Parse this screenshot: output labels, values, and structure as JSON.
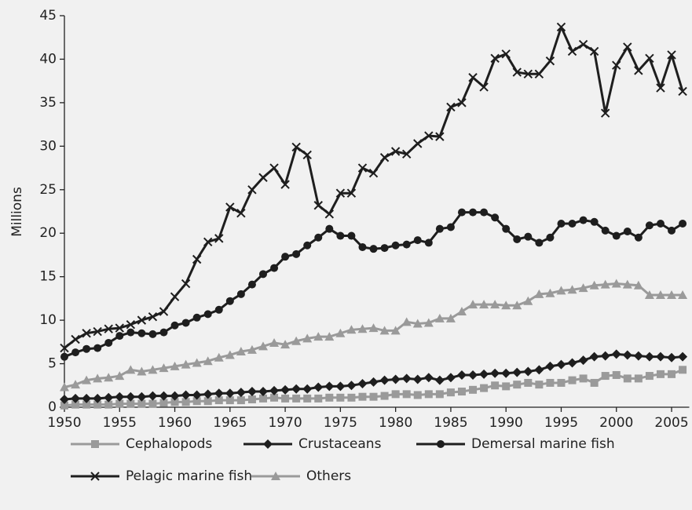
{
  "chart_data": {
    "type": "line",
    "y_label": "Millions",
    "x": [
      1950,
      1951,
      1952,
      1953,
      1954,
      1955,
      1956,
      1957,
      1958,
      1959,
      1960,
      1961,
      1962,
      1963,
      1964,
      1965,
      1966,
      1967,
      1968,
      1969,
      1970,
      1971,
      1972,
      1973,
      1974,
      1975,
      1976,
      1977,
      1978,
      1979,
      1980,
      1981,
      1982,
      1983,
      1984,
      1985,
      1986,
      1987,
      1988,
      1989,
      1990,
      1991,
      1992,
      1993,
      1994,
      1995,
      1996,
      1997,
      1998,
      1999,
      2000,
      2001,
      2002,
      2003,
      2004,
      2005,
      2006
    ],
    "xlim": [
      1950,
      2006.6
    ],
    "xticks": [
      1950,
      1955,
      1960,
      1965,
      1970,
      1975,
      1980,
      1985,
      1990,
      1995,
      2000,
      2005
    ],
    "ylim": [
      0,
      45
    ],
    "yticks": [
      0,
      5,
      10,
      15,
      20,
      25,
      30,
      35,
      40,
      45
    ],
    "series": [
      {
        "name": "Cephalopods",
        "color": "#9a9a9a",
        "marker": "square",
        "values": [
          0.2,
          0.3,
          0.3,
          0.3,
          0.3,
          0.4,
          0.4,
          0.4,
          0.4,
          0.5,
          0.6,
          0.6,
          0.7,
          0.7,
          0.8,
          0.8,
          0.8,
          0.9,
          1.0,
          1.1,
          1.0,
          1.0,
          1.0,
          1.0,
          1.1,
          1.1,
          1.1,
          1.2,
          1.2,
          1.3,
          1.5,
          1.5,
          1.4,
          1.5,
          1.5,
          1.7,
          1.8,
          2.0,
          2.2,
          2.5,
          2.4,
          2.6,
          2.8,
          2.6,
          2.8,
          2.8,
          3.1,
          3.3,
          2.8,
          3.6,
          3.7,
          3.3,
          3.3,
          3.6,
          3.8,
          3.8,
          4.3
        ]
      },
      {
        "name": "Crustaceans",
        "color": "#1e1e1e",
        "marker": "diamond",
        "values": [
          0.9,
          1.0,
          1.0,
          1.0,
          1.1,
          1.2,
          1.2,
          1.2,
          1.3,
          1.3,
          1.3,
          1.4,
          1.4,
          1.5,
          1.6,
          1.6,
          1.7,
          1.8,
          1.8,
          1.9,
          2.0,
          2.1,
          2.1,
          2.3,
          2.4,
          2.4,
          2.5,
          2.7,
          2.9,
          3.1,
          3.2,
          3.3,
          3.2,
          3.4,
          3.1,
          3.4,
          3.7,
          3.7,
          3.8,
          3.9,
          3.9,
          4.0,
          4.1,
          4.3,
          4.7,
          4.9,
          5.1,
          5.4,
          5.8,
          5.9,
          6.1,
          6.0,
          5.9,
          5.8,
          5.8,
          5.7,
          5.8
        ]
      },
      {
        "name": "Demersal marine fish",
        "color": "#1e1e1e",
        "marker": "circle",
        "values": [
          5.8,
          6.3,
          6.7,
          6.8,
          7.4,
          8.2,
          8.6,
          8.5,
          8.4,
          8.6,
          9.4,
          9.7,
          10.3,
          10.7,
          11.2,
          12.2,
          13.0,
          14.1,
          15.3,
          16.0,
          17.3,
          17.6,
          18.6,
          19.5,
          20.5,
          19.7,
          19.7,
          18.4,
          18.2,
          18.3,
          18.6,
          18.7,
          19.2,
          18.9,
          20.5,
          20.7,
          22.4,
          22.4,
          22.4,
          21.8,
          20.5,
          19.3,
          19.6,
          18.9,
          19.5,
          21.1,
          21.1,
          21.5,
          21.3,
          20.3,
          19.7,
          20.2,
          19.5,
          20.9,
          21.1,
          20.3,
          21.1
        ]
      },
      {
        "name": "Pelagic marine fish",
        "color": "#1e1e1e",
        "marker": "cross",
        "values": [
          6.8,
          7.8,
          8.5,
          8.7,
          9.0,
          9.1,
          9.5,
          10.0,
          10.4,
          11.0,
          12.7,
          14.2,
          17.0,
          19.0,
          19.4,
          23.0,
          22.3,
          25.0,
          26.4,
          27.5,
          25.6,
          29.9,
          29.0,
          23.2,
          22.2,
          24.6,
          24.6,
          27.5,
          26.9,
          28.7,
          29.4,
          29.1,
          30.3,
          31.2,
          31.1,
          34.5,
          35.0,
          37.9,
          36.8,
          40.1,
          40.6,
          38.5,
          38.3,
          38.3,
          39.8,
          43.7,
          40.9,
          41.7,
          40.9,
          33.8,
          39.3,
          41.4,
          38.7,
          40.1,
          36.7,
          40.5,
          36.3
        ]
      },
      {
        "name": "Others",
        "color": "#9a9a9a",
        "marker": "triangle",
        "values": [
          2.3,
          2.6,
          3.1,
          3.3,
          3.4,
          3.6,
          4.3,
          4.1,
          4.3,
          4.5,
          4.7,
          4.9,
          5.1,
          5.3,
          5.7,
          6.0,
          6.4,
          6.6,
          7.0,
          7.4,
          7.2,
          7.6,
          7.9,
          8.1,
          8.1,
          8.5,
          8.9,
          9.0,
          9.1,
          8.8,
          8.8,
          9.8,
          9.6,
          9.7,
          10.2,
          10.2,
          11.0,
          11.8,
          11.8,
          11.8,
          11.7,
          11.7,
          12.2,
          13.0,
          13.1,
          13.4,
          13.5,
          13.7,
          14.0,
          14.1,
          14.2,
          14.1,
          14.0,
          12.9,
          12.9,
          12.9,
          12.9
        ]
      }
    ]
  }
}
